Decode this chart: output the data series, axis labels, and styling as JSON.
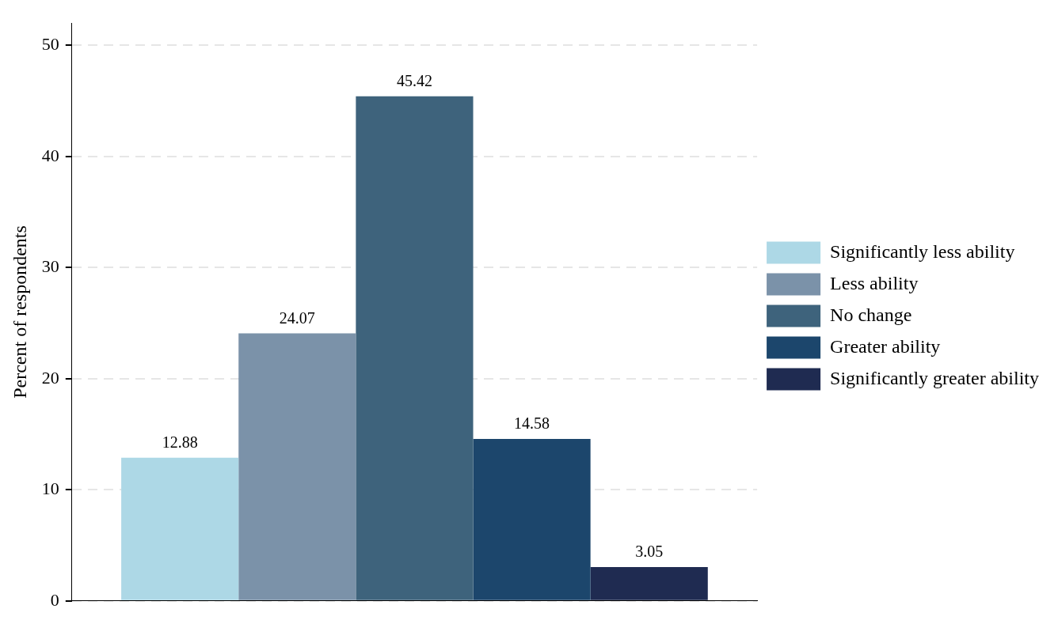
{
  "chart_data": {
    "type": "bar",
    "ylabel": "Percent of respondents",
    "categories": [
      null
    ],
    "series": [
      {
        "name": "Significantly less ability",
        "color": "#add8e6",
        "values": [
          12.88
        ]
      },
      {
        "name": "Less ability",
        "color": "#7b92a9",
        "values": [
          24.07
        ]
      },
      {
        "name": "No change",
        "color": "#3e637c",
        "values": [
          45.42
        ]
      },
      {
        "name": "Greater ability",
        "color": "#1c466c",
        "values": [
          14.58
        ]
      },
      {
        "name": "Significantly greater ability",
        "color": "#1f2b51",
        "values": [
          3.05
        ]
      }
    ],
    "ylim": [
      0,
      52
    ],
    "yticks": [
      0,
      10,
      20,
      30,
      40,
      50
    ],
    "grid": "y",
    "legend": "right",
    "data_labels": true
  }
}
